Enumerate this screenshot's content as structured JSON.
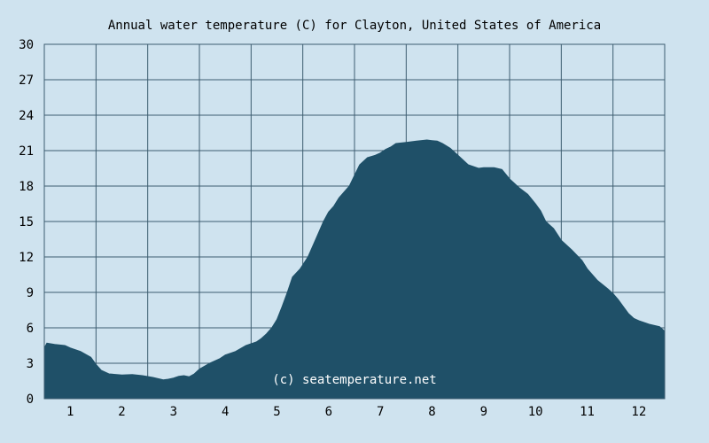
{
  "chart_data": {
    "type": "area",
    "title": "Annual water temperature (C) for Clayton, United States of America",
    "xlabel": "",
    "ylabel": "",
    "xlim": [
      0.5,
      12.5
    ],
    "ylim": [
      0,
      30
    ],
    "x_ticks": [
      1,
      2,
      3,
      4,
      5,
      6,
      7,
      8,
      9,
      10,
      11,
      12
    ],
    "y_ticks": [
      0,
      3,
      6,
      9,
      12,
      15,
      18,
      21,
      24,
      27,
      30
    ],
    "grid": true,
    "annotation": "(c) seatemperature.net",
    "colors": {
      "background": "#cfe3ef",
      "plot_background": "#cfe3ef",
      "fill": "#1f5068",
      "grid": "#3d5d70"
    },
    "x": [
      0.5,
      0.55,
      0.7,
      0.9,
      1.0,
      1.2,
      1.4,
      1.5,
      1.6,
      1.75,
      1.9,
      2.0,
      2.2,
      2.4,
      2.6,
      2.8,
      2.9,
      3.0,
      3.1,
      3.2,
      3.3,
      3.4,
      3.5,
      3.7,
      3.9,
      4.0,
      4.2,
      4.4,
      4.6,
      4.7,
      4.8,
      4.9,
      5.0,
      5.1,
      5.2,
      5.3,
      5.45,
      5.6,
      5.75,
      5.9,
      6.0,
      6.1,
      6.2,
      6.4,
      6.6,
      6.75,
      6.9,
      7.0,
      7.1,
      7.2,
      7.3,
      7.5,
      7.7,
      7.9,
      8.0,
      8.1,
      8.2,
      8.35,
      8.5,
      8.7,
      8.9,
      9.0,
      9.2,
      9.35,
      9.5,
      9.7,
      9.85,
      10.0,
      10.1,
      10.2,
      10.35,
      10.5,
      10.7,
      10.9,
      11.0,
      11.2,
      11.4,
      11.5,
      11.6,
      11.7,
      11.8,
      11.9,
      12.0,
      12.2,
      12.4,
      12.5
    ],
    "values": [
      4.3,
      4.7,
      4.6,
      4.5,
      4.3,
      4.0,
      3.5,
      2.9,
      2.4,
      2.1,
      2.05,
      2.0,
      2.05,
      1.95,
      1.8,
      1.6,
      1.65,
      1.75,
      1.9,
      1.95,
      1.85,
      2.1,
      2.5,
      3.0,
      3.4,
      3.7,
      4.0,
      4.5,
      4.8,
      5.1,
      5.5,
      6.0,
      6.7,
      7.8,
      9.0,
      10.3,
      11.0,
      12.0,
      13.5,
      15.0,
      15.8,
      16.3,
      17.0,
      18.0,
      19.8,
      20.4,
      20.6,
      20.8,
      21.1,
      21.3,
      21.6,
      21.7,
      21.8,
      21.9,
      21.85,
      21.8,
      21.6,
      21.2,
      20.6,
      19.8,
      19.5,
      19.55,
      19.55,
      19.4,
      18.6,
      17.8,
      17.3,
      16.5,
      15.9,
      15.0,
      14.4,
      13.4,
      12.6,
      11.7,
      11.0,
      10.0,
      9.3,
      8.9,
      8.4,
      7.8,
      7.2,
      6.8,
      6.6,
      6.3,
      6.1,
      5.7
    ]
  }
}
